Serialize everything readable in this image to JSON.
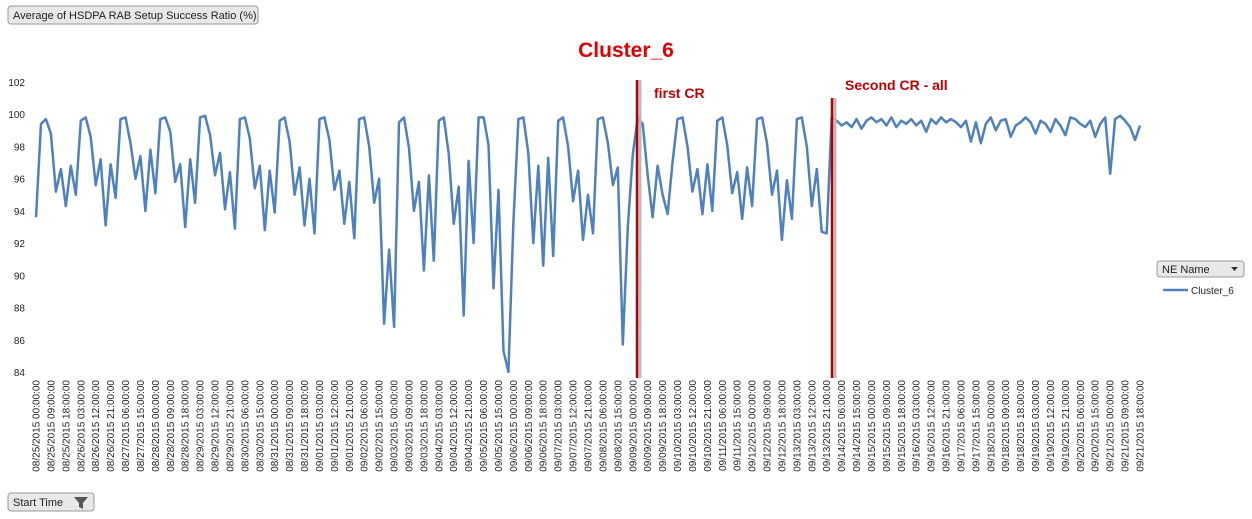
{
  "ui": {
    "value_field": "Average of HSDPA RAB Setup Success Ratio (%)",
    "axis_field": "Start Time",
    "legend_field": "NE Name"
  },
  "chart_data": {
    "type": "line",
    "title": "Cluster_6",
    "annotations": [
      "first CR",
      "Second CR  - all"
    ],
    "categories": [
      "08/25/2015 00:00:00",
      null,
      null,
      "08/25/2015 09:00:00",
      null,
      null,
      "08/25/2015 18:00:00",
      null,
      null,
      "08/26/2015 03:00:00",
      null,
      null,
      "08/26/2015 12:00:00",
      null,
      null,
      "08/26/2015 21:00:00",
      null,
      null,
      "08/27/2015 06:00:00",
      null,
      null,
      "08/27/2015 15:00:00",
      null,
      null,
      "08/28/2015 00:00:00",
      null,
      null,
      "08/28/2015 09:00:00",
      null,
      null,
      "08/28/2015 18:00:00",
      null,
      null,
      "08/29/2015 03:00:00",
      null,
      null,
      "08/29/2015 12:00:00",
      null,
      null,
      "08/29/2015 21:00:00",
      null,
      null,
      "08/30/2015 06:00:00",
      null,
      null,
      "08/30/2015 15:00:00",
      null,
      null,
      "08/31/2015 00:00:00",
      null,
      null,
      "08/31/2015 09:00:00",
      null,
      null,
      "08/31/2015 18:00:00",
      null,
      null,
      "09/01/2015 03:00:00",
      null,
      null,
      "09/01/2015 12:00:00",
      null,
      null,
      "09/01/2015 21:00:00",
      null,
      null,
      "09/02/2015 06:00:00",
      null,
      null,
      "09/02/2015 15:00:00",
      null,
      null,
      "09/03/2015 00:00:00",
      null,
      null,
      "09/03/2015 09:00:00",
      null,
      null,
      "09/03/2015 18:00:00",
      null,
      null,
      "09/04/2015 03:00:00",
      null,
      null,
      "09/04/2015 12:00:00",
      null,
      null,
      "09/04/2015 21:00:00",
      null,
      null,
      "09/05/2015 06:00:00",
      null,
      null,
      "09/05/2015 15:00:00",
      null,
      null,
      "09/06/2015 00:00:00",
      null,
      null,
      "09/06/2015 09:00:00",
      null,
      null,
      "09/06/2015 18:00:00",
      null,
      null,
      "09/07/2015 03:00:00",
      null,
      null,
      "09/07/2015 12:00:00",
      null,
      null,
      "09/07/2015 21:00:00",
      null,
      null,
      "09/08/2015 06:00:00",
      null,
      null,
      "09/08/2015 15:00:00",
      null,
      null,
      "09/09/2015 00:00:00",
      null,
      null,
      "09/09/2015 09:00:00",
      null,
      null,
      "09/09/2015 18:00:00",
      null,
      null,
      "09/10/2015 03:00:00",
      null,
      null,
      "09/10/2015 12:00:00",
      null,
      null,
      "09/10/2015 21:00:00",
      null,
      null,
      "09/11/2015 06:00:00",
      null,
      null,
      "09/11/2015 15:00:00",
      null,
      null,
      "09/12/2015 00:00:00",
      null,
      null,
      "09/12/2015 09:00:00",
      null,
      null,
      "09/12/2015 18:00:00",
      null,
      null,
      "09/13/2015 03:00:00",
      null,
      null,
      "09/13/2015 12:00:00",
      null,
      null,
      "09/13/2015 21:00:00",
      null,
      null,
      "09/14/2015 06:00:00",
      null,
      null,
      "09/14/2015 15:00:00",
      null,
      null,
      "09/15/2015 00:00:00",
      null,
      null,
      "09/15/2015 09:00:00",
      null,
      null,
      "09/15/2015 18:00:00",
      null,
      null,
      "09/16/2015 03:00:00",
      null,
      null,
      "09/16/2015 12:00:00",
      null,
      null,
      "09/16/2015 21:00:00",
      null,
      null,
      "09/17/2015 06:00:00",
      null,
      null,
      "09/17/2015 15:00:00",
      null,
      null,
      "09/18/2015 00:00:00",
      null,
      null,
      "09/18/2015 09:00:00",
      null,
      null,
      "09/18/2015 18:00:00",
      null,
      null,
      "09/19/2015 03:00:00",
      null,
      null,
      "09/19/2015 12:00:00",
      null,
      null,
      "09/19/2015 21:00:00",
      null,
      null,
      "09/20/2015 06:00:00",
      null,
      null,
      "09/20/2015 15:00:00",
      null,
      null,
      "09/21/2015 00:00:00",
      null,
      null,
      "09/21/2015 09:00:00",
      null,
      null,
      "09/21/2015 18:00:00"
    ],
    "series": [
      {
        "name": "Cluster_6",
        "color": "#4f81bd",
        "values": [
          93.6,
          99.4,
          99.7,
          98.8,
          95.2,
          96.6,
          94.3,
          96.8,
          95.0,
          99.6,
          99.8,
          98.6,
          95.6,
          97.2,
          93.1,
          96.9,
          94.8,
          99.7,
          99.8,
          98.2,
          96.0,
          97.4,
          94.0,
          97.8,
          95.1,
          99.7,
          99.8,
          98.9,
          95.8,
          96.9,
          93.0,
          97.2,
          94.5,
          99.8,
          99.9,
          98.7,
          96.2,
          97.6,
          94.1,
          96.4,
          92.9,
          99.7,
          99.8,
          98.5,
          95.4,
          96.8,
          92.8,
          96.5,
          93.9,
          99.6,
          99.8,
          98.3,
          95.0,
          96.7,
          93.1,
          96.0,
          92.6,
          99.7,
          99.8,
          98.4,
          95.3,
          96.5,
          93.2,
          95.8,
          92.3,
          99.7,
          99.8,
          98.0,
          94.5,
          96.0,
          87.0,
          91.6,
          86.8,
          99.5,
          99.8,
          97.9,
          94.0,
          95.8,
          90.3,
          96.2,
          90.9,
          99.6,
          99.8,
          97.5,
          93.2,
          95.5,
          87.5,
          97.1,
          92.0,
          99.8,
          99.8,
          98.1,
          89.2,
          95.3,
          85.3,
          84.0,
          93.3,
          99.7,
          99.8,
          97.6,
          92.0,
          96.8,
          90.6,
          97.3,
          91.2,
          99.6,
          99.8,
          98.0,
          94.6,
          96.5,
          92.2,
          95.0,
          92.6,
          99.7,
          99.8,
          98.2,
          95.6,
          96.7,
          85.7,
          93.0,
          97.5,
          99.8,
          99.4,
          96.2,
          93.6,
          96.8,
          95.0,
          93.8,
          97.0,
          99.7,
          99.8,
          98.0,
          95.2,
          96.6,
          93.8,
          96.9,
          94.0,
          99.6,
          99.8,
          98.1,
          95.1,
          96.4,
          93.5,
          96.7,
          94.3,
          99.7,
          99.8,
          98.2,
          95.0,
          96.5,
          92.2,
          95.9,
          93.5,
          99.7,
          99.8,
          98.0,
          94.3,
          96.6,
          92.7,
          92.6,
          99.8,
          99.6,
          99.3,
          99.5,
          99.2,
          99.7,
          99.1,
          99.6,
          99.8,
          99.5,
          99.7,
          99.3,
          99.8,
          99.2,
          99.6,
          99.4,
          99.7,
          99.3,
          99.6,
          98.9,
          99.7,
          99.4,
          99.8,
          99.5,
          99.7,
          99.5,
          99.2,
          99.6,
          98.3,
          99.5,
          98.2,
          99.4,
          99.8,
          99.0,
          99.6,
          99.7,
          98.6,
          99.3,
          99.5,
          99.8,
          99.5,
          98.8,
          99.6,
          99.4,
          98.9,
          99.7,
          99.3,
          98.7,
          99.8,
          99.7,
          99.4,
          99.2,
          99.6,
          98.6,
          99.4,
          99.8,
          96.3,
          99.7,
          99.9,
          99.6,
          99.2,
          98.4,
          99.3
        ]
      }
    ],
    "ylim": [
      84,
      102
    ],
    "yticks": [
      84,
      86,
      88,
      90,
      92,
      94,
      96,
      98,
      100,
      102
    ],
    "grid": false,
    "legend": "right"
  }
}
